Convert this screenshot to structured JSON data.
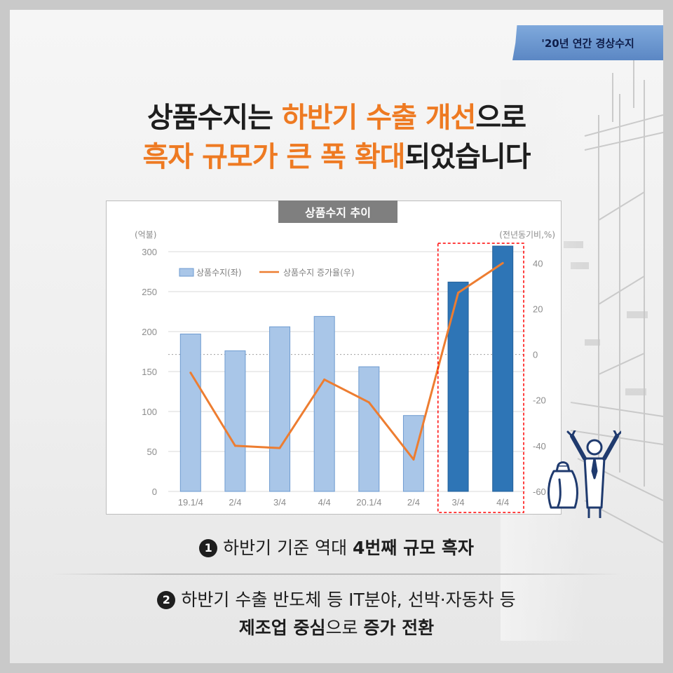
{
  "badge": {
    "label": "'20년 연간 경상수지"
  },
  "headline": {
    "line1_a": "상품수지는 ",
    "line1_b": "하반기 수출 개선",
    "line1_c": "으로",
    "line2_a": "흑자 규모가 큰 폭 확대",
    "line2_b": "되었습니다"
  },
  "points": {
    "p1_num": "1",
    "p1_text": "하반기 기준 역대 ",
    "p1_bold": "4번째 규모 흑자",
    "p2_num": "2",
    "p2_line1": "하반기 수출 반도체 등 IT분야, 선박·자동차 등",
    "p2_bold1": "제조업 중심",
    "p2_mid": "으로 ",
    "p2_bold2": "증가 전환"
  },
  "colors": {
    "accent": "#ee7a22",
    "bar_light": "#a9c6e8",
    "bar_dark": "#2e75b6",
    "line": "#ed7d31",
    "highlight_box": "#ff0000"
  },
  "chart_data": {
    "type": "bar",
    "title": "상품수지 추이",
    "categories": [
      "19.1/4",
      "2/4",
      "3/4",
      "4/4",
      "20.1/4",
      "2/4",
      "3/4",
      "4/4"
    ],
    "ylabel_left": "(억불)",
    "ylabel_right": "(전년동기비,%)",
    "ylim_left": [
      0,
      300
    ],
    "yticks_left": [
      0,
      50,
      100,
      150,
      200,
      250,
      300
    ],
    "ylim_right": [
      -60,
      45
    ],
    "yticks_right": [
      -60,
      -40,
      -20,
      0,
      20,
      40
    ],
    "legend_position": "top-left",
    "highlighted_categories": [
      6,
      7
    ],
    "series": [
      {
        "name": "상품수지(좌)",
        "type": "bar",
        "axis": "left",
        "values": [
          197,
          176,
          206,
          219,
          156,
          95,
          262,
          307
        ]
      },
      {
        "name": "상품수지 증가율(우)",
        "type": "line",
        "axis": "right",
        "values": [
          -8,
          -40,
          -41,
          -11,
          -21,
          -46,
          27,
          40
        ]
      }
    ]
  }
}
